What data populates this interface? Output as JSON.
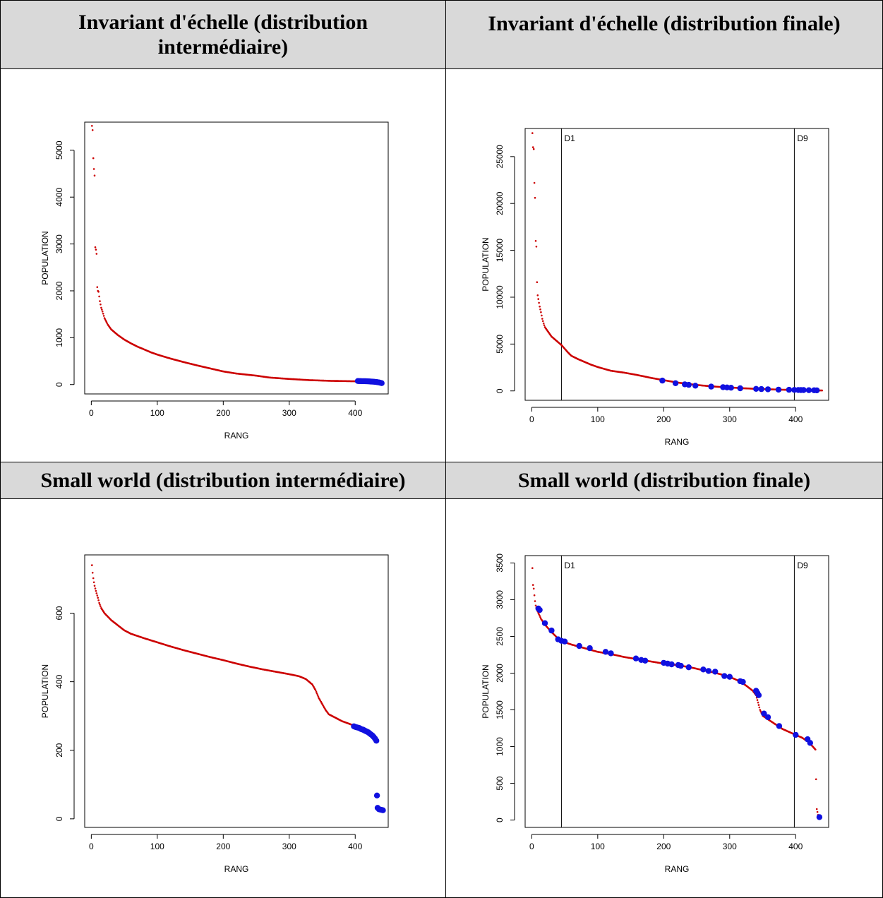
{
  "headers": {
    "tl": "Invariant d'échelle (distribution intermédiaire)",
    "tr": "Invariant d'échelle (distribution finale)",
    "bl": "Small world (distribution intermédiaire)",
    "br": "Small world (distribution finale)"
  },
  "colors": {
    "points": "#cc0000",
    "highlight": "#1010e0",
    "axis": "#000000",
    "header_bg": "#d9d9d9"
  },
  "chart_data": [
    {
      "type": "scatter",
      "xlabel": "RANG",
      "ylabel": "POPULATION",
      "xlim": [
        -10,
        450
      ],
      "ylim": [
        -200,
        5600
      ],
      "xticks": [
        0,
        100,
        200,
        300,
        400
      ],
      "yticks": [
        0,
        1000,
        2000,
        3000,
        4000,
        5000
      ],
      "red_curve": [
        [
          1,
          5520
        ],
        [
          2,
          5430
        ],
        [
          3,
          4830
        ],
        [
          4,
          4600
        ],
        [
          5,
          4460
        ],
        [
          6,
          2930
        ],
        [
          7,
          2880
        ],
        [
          8,
          2790
        ],
        [
          9,
          2080
        ],
        [
          10,
          2000
        ],
        [
          11,
          1980
        ],
        [
          13,
          1780
        ],
        [
          15,
          1640
        ],
        [
          17,
          1560
        ],
        [
          20,
          1420
        ],
        [
          25,
          1280
        ],
        [
          30,
          1180
        ],
        [
          40,
          1060
        ],
        [
          50,
          960
        ],
        [
          60,
          880
        ],
        [
          70,
          810
        ],
        [
          80,
          750
        ],
        [
          90,
          690
        ],
        [
          100,
          640
        ],
        [
          120,
          555
        ],
        [
          140,
          480
        ],
        [
          160,
          410
        ],
        [
          180,
          345
        ],
        [
          200,
          280
        ],
        [
          220,
          235
        ],
        [
          250,
          190
        ],
        [
          270,
          150
        ],
        [
          300,
          120
        ],
        [
          330,
          95
        ],
        [
          360,
          80
        ],
        [
          400,
          70
        ],
        [
          440,
          50
        ]
      ],
      "blue_points": [
        [
          404,
          75
        ],
        [
          406,
          74
        ],
        [
          408,
          74
        ],
        [
          410,
          73
        ],
        [
          412,
          72
        ],
        [
          414,
          72
        ],
        [
          416,
          71
        ],
        [
          418,
          70
        ],
        [
          420,
          68
        ],
        [
          422,
          66
        ],
        [
          424,
          64
        ],
        [
          426,
          62
        ],
        [
          428,
          60
        ],
        [
          430,
          57
        ],
        [
          432,
          54
        ],
        [
          434,
          50
        ],
        [
          436,
          45
        ],
        [
          438,
          38
        ],
        [
          440,
          30
        ]
      ],
      "vlines": []
    },
    {
      "type": "scatter",
      "xlabel": "RANG",
      "ylabel": "POPULATION",
      "xlim": [
        -10,
        450
      ],
      "ylim": [
        -1000,
        28000
      ],
      "xticks": [
        0,
        100,
        200,
        300,
        400
      ],
      "yticks": [
        0,
        5000,
        10000,
        15000,
        20000,
        25000
      ],
      "red_curve": [
        [
          1,
          27500
        ],
        [
          2,
          26000
        ],
        [
          3,
          25800
        ],
        [
          4,
          22200
        ],
        [
          5,
          20600
        ],
        [
          6,
          16000
        ],
        [
          7,
          15400
        ],
        [
          8,
          11600
        ],
        [
          9,
          10200
        ],
        [
          10,
          9800
        ],
        [
          12,
          9000
        ],
        [
          14,
          8400
        ],
        [
          16,
          7700
        ],
        [
          18,
          7200
        ],
        [
          20,
          6800
        ],
        [
          25,
          6300
        ],
        [
          30,
          5800
        ],
        [
          35,
          5500
        ],
        [
          40,
          5200
        ],
        [
          45,
          4900
        ],
        [
          50,
          4500
        ],
        [
          55,
          4100
        ],
        [
          60,
          3750
        ],
        [
          70,
          3400
        ],
        [
          80,
          3100
        ],
        [
          90,
          2800
        ],
        [
          100,
          2550
        ],
        [
          120,
          2150
        ],
        [
          140,
          1950
        ],
        [
          160,
          1700
        ],
        [
          180,
          1400
        ],
        [
          200,
          1150
        ],
        [
          220,
          900
        ],
        [
          240,
          720
        ],
        [
          260,
          570
        ],
        [
          280,
          450
        ],
        [
          300,
          370
        ],
        [
          320,
          290
        ],
        [
          340,
          220
        ],
        [
          360,
          170
        ],
        [
          380,
          130
        ],
        [
          400,
          100
        ],
        [
          420,
          75
        ],
        [
          440,
          50
        ]
      ],
      "blue_points": [
        [
          198,
          1100
        ],
        [
          218,
          820
        ],
        [
          232,
          700
        ],
        [
          238,
          650
        ],
        [
          248,
          560
        ],
        [
          272,
          460
        ],
        [
          290,
          400
        ],
        [
          296,
          370
        ],
        [
          302,
          340
        ],
        [
          316,
          280
        ],
        [
          340,
          220
        ],
        [
          348,
          200
        ],
        [
          358,
          175
        ],
        [
          374,
          140
        ],
        [
          390,
          120
        ],
        [
          398,
          110
        ],
        [
          404,
          100
        ],
        [
          408,
          95
        ],
        [
          412,
          90
        ],
        [
          420,
          80
        ],
        [
          428,
          70
        ],
        [
          432,
          65
        ]
      ],
      "vlines": [
        {
          "x": 45,
          "label": "D1"
        },
        {
          "x": 398,
          "label": "D9"
        }
      ]
    },
    {
      "type": "scatter",
      "xlabel": "RANG",
      "ylabel": "POPULATION",
      "xlim": [
        -10,
        450
      ],
      "ylim": [
        -25,
        770
      ],
      "xticks": [
        0,
        100,
        200,
        300,
        400
      ],
      "yticks": [
        0,
        200,
        400,
        600
      ],
      "red_curve": [
        [
          1,
          740
        ],
        [
          2,
          718
        ],
        [
          3,
          702
        ],
        [
          4,
          690
        ],
        [
          5,
          680
        ],
        [
          6,
          672
        ],
        [
          7,
          665
        ],
        [
          8,
          658
        ],
        [
          10,
          645
        ],
        [
          12,
          630
        ],
        [
          15,
          615
        ],
        [
          20,
          600
        ],
        [
          25,
          590
        ],
        [
          30,
          580
        ],
        [
          40,
          565
        ],
        [
          50,
          550
        ],
        [
          60,
          540
        ],
        [
          80,
          527
        ],
        [
          100,
          515
        ],
        [
          120,
          503
        ],
        [
          140,
          492
        ],
        [
          160,
          482
        ],
        [
          180,
          472
        ],
        [
          200,
          463
        ],
        [
          220,
          453
        ],
        [
          240,
          444
        ],
        [
          260,
          436
        ],
        [
          280,
          429
        ],
        [
          300,
          422
        ],
        [
          315,
          416
        ],
        [
          325,
          408
        ],
        [
          335,
          392
        ],
        [
          340,
          375
        ],
        [
          345,
          352
        ],
        [
          350,
          335
        ],
        [
          355,
          318
        ],
        [
          360,
          305
        ],
        [
          370,
          295
        ],
        [
          380,
          285
        ],
        [
          390,
          278
        ],
        [
          398,
          272
        ]
      ],
      "blue_points": [
        [
          398,
          270
        ],
        [
          400,
          268
        ],
        [
          402,
          267
        ],
        [
          404,
          266
        ],
        [
          406,
          265
        ],
        [
          408,
          263
        ],
        [
          410,
          261
        ],
        [
          412,
          260
        ],
        [
          414,
          258
        ],
        [
          416,
          256
        ],
        [
          418,
          254
        ],
        [
          420,
          252
        ],
        [
          422,
          249
        ],
        [
          424,
          246
        ],
        [
          426,
          243
        ],
        [
          428,
          239
        ],
        [
          430,
          234
        ],
        [
          432,
          228
        ],
        [
          433,
          68
        ],
        [
          434,
          32
        ],
        [
          436,
          28
        ],
        [
          438,
          27
        ],
        [
          440,
          26
        ],
        [
          442,
          25
        ]
      ],
      "vlines": []
    },
    {
      "type": "scatter",
      "xlabel": "RANG",
      "ylabel": "POPULATION",
      "xlim": [
        -10,
        450
      ],
      "ylim": [
        -100,
        3600
      ],
      "xticks": [
        0,
        100,
        200,
        300,
        400
      ],
      "yticks": [
        0,
        500,
        1000,
        1500,
        2000,
        2500,
        3000,
        3500
      ],
      "red_curve": [
        [
          1,
          3430
        ],
        [
          2,
          3200
        ],
        [
          3,
          3150
        ],
        [
          4,
          3060
        ],
        [
          5,
          2980
        ],
        [
          6,
          2920
        ],
        [
          8,
          2860
        ],
        [
          10,
          2820
        ],
        [
          14,
          2740
        ],
        [
          20,
          2660
        ],
        [
          30,
          2560
        ],
        [
          40,
          2470
        ],
        [
          50,
          2420
        ],
        [
          60,
          2390
        ],
        [
          80,
          2340
        ],
        [
          100,
          2290
        ],
        [
          120,
          2260
        ],
        [
          140,
          2220
        ],
        [
          160,
          2190
        ],
        [
          180,
          2160
        ],
        [
          200,
          2130
        ],
        [
          220,
          2110
        ],
        [
          240,
          2080
        ],
        [
          260,
          2040
        ],
        [
          280,
          2000
        ],
        [
          300,
          1950
        ],
        [
          315,
          1890
        ],
        [
          325,
          1830
        ],
        [
          335,
          1760
        ],
        [
          340,
          1700
        ],
        [
          343,
          1600
        ],
        [
          346,
          1500
        ],
        [
          350,
          1420
        ],
        [
          360,
          1360
        ],
        [
          370,
          1300
        ],
        [
          380,
          1240
        ],
        [
          390,
          1200
        ],
        [
          400,
          1160
        ],
        [
          410,
          1120
        ],
        [
          420,
          1060
        ],
        [
          430,
          960
        ],
        [
          432,
          150
        ],
        [
          434,
          70
        ],
        [
          436,
          40
        ]
      ],
      "blue_points": [
        [
          10,
          2880
        ],
        [
          12,
          2860
        ],
        [
          20,
          2680
        ],
        [
          30,
          2580
        ],
        [
          40,
          2460
        ],
        [
          45,
          2440
        ],
        [
          50,
          2430
        ],
        [
          72,
          2370
        ],
        [
          88,
          2340
        ],
        [
          112,
          2290
        ],
        [
          120,
          2270
        ],
        [
          158,
          2200
        ],
        [
          166,
          2180
        ],
        [
          172,
          2170
        ],
        [
          200,
          2140
        ],
        [
          206,
          2130
        ],
        [
          212,
          2120
        ],
        [
          222,
          2110
        ],
        [
          226,
          2100
        ],
        [
          238,
          2080
        ],
        [
          260,
          2050
        ],
        [
          268,
          2030
        ],
        [
          278,
          2020
        ],
        [
          292,
          1960
        ],
        [
          300,
          1950
        ],
        [
          316,
          1890
        ],
        [
          320,
          1880
        ],
        [
          340,
          1760
        ],
        [
          342,
          1730
        ],
        [
          344,
          1700
        ],
        [
          352,
          1450
        ],
        [
          358,
          1400
        ],
        [
          375,
          1280
        ],
        [
          400,
          1160
        ],
        [
          418,
          1100
        ],
        [
          422,
          1050
        ],
        [
          436,
          40
        ]
      ],
      "vlines": [
        {
          "x": 45,
          "label": "D1"
        },
        {
          "x": 398,
          "label": "D9"
        }
      ]
    }
  ]
}
